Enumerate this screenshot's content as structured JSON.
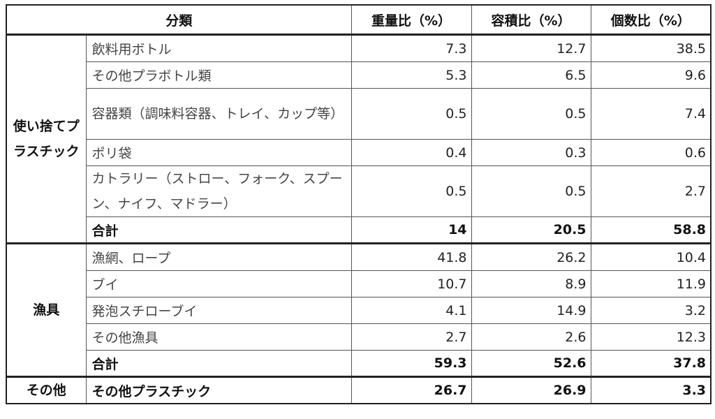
{
  "header": {
    "category": "分類",
    "weight": "重量比（%）",
    "volume": "容積比（%）",
    "count": "個数比（%）"
  },
  "groups": [
    {
      "name": "使い捨てプラスチック",
      "rows": [
        {
          "item": "飲料用ボトル",
          "weight": "7.3",
          "volume": "12.7",
          "count": "38.5"
        },
        {
          "item": "その他プラボトル類",
          "weight": "5.3",
          "volume": "6.5",
          "count": "9.6"
        },
        {
          "item": "容器類（調味料容器、トレイ、カップ等）",
          "weight": "0.5",
          "volume": "0.5",
          "count": "7.4"
        },
        {
          "item": "ポリ袋",
          "weight": "0.4",
          "volume": "0.3",
          "count": "0.6"
        },
        {
          "item": "カトラリー（ストロー、フォーク、スプーン、ナイフ、マドラー）",
          "weight": "0.5",
          "volume": "0.5",
          "count": "2.7"
        },
        {
          "item": "合計",
          "weight": "14",
          "volume": "20.5",
          "count": "58.8"
        }
      ]
    },
    {
      "name": "漁具",
      "rows": [
        {
          "item": "漁網、ロープ",
          "weight": "41.8",
          "volume": "26.2",
          "count": "10.4"
        },
        {
          "item": "ブイ",
          "weight": "10.7",
          "volume": "8.9",
          "count": "11.9"
        },
        {
          "item": "発泡スチローブイ",
          "weight": "4.1",
          "volume": "14.9",
          "count": "3.2"
        },
        {
          "item": "その他漁具",
          "weight": "2.7",
          "volume": "2.6",
          "count": "12.3"
        },
        {
          "item": "合計",
          "weight": "59.3",
          "volume": "52.6",
          "count": "37.8"
        }
      ]
    },
    {
      "name": "その他",
      "rows": [
        {
          "item": "その他プラスチック",
          "weight": "26.7",
          "volume": "26.9",
          "count": "3.3"
        }
      ]
    }
  ]
}
